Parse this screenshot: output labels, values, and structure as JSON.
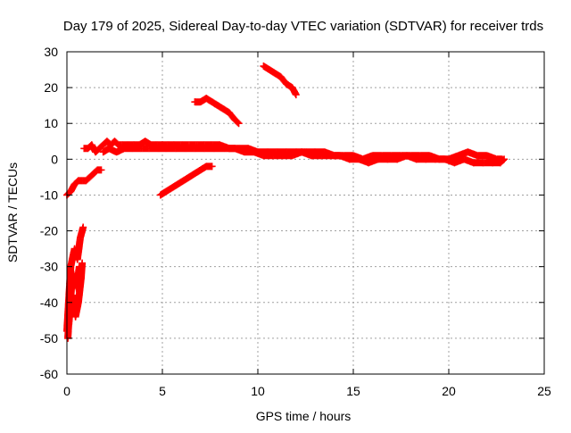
{
  "chart_data": {
    "type": "scatter",
    "title": "Day 179 of 2025, Sidereal Day-to-day VTEC variation (SDTVAR) for receiver trds",
    "xlabel": "GPS time / hours",
    "ylabel": "SDTVAR / TECUs",
    "xlim": [
      0,
      25
    ],
    "ylim": [
      -60,
      30
    ],
    "xticks": [
      0,
      5,
      10,
      15,
      20,
      25
    ],
    "yticks": [
      -60,
      -50,
      -40,
      -30,
      -20,
      -10,
      0,
      10,
      20,
      30
    ],
    "grid": true,
    "marker": "plus",
    "color": "#ff0000",
    "series": [
      {
        "name": "arc-low-spikes",
        "segments": [
          [
            [
              0.0,
              -48
            ],
            [
              0.2,
              -30
            ],
            [
              0.4,
              -25
            ],
            [
              0.55,
              -28
            ],
            [
              0.7,
              -22
            ],
            [
              0.85,
              -19
            ]
          ],
          [
            [
              0.05,
              -50
            ],
            [
              0.15,
              -40
            ],
            [
              0.3,
              -38
            ],
            [
              0.45,
              -44
            ],
            [
              0.6,
              -40
            ],
            [
              0.75,
              -33
            ],
            [
              0.8,
              -29
            ]
          ],
          [
            [
              0.1,
              -46
            ],
            [
              0.25,
              -35
            ],
            [
              0.35,
              -32
            ],
            [
              0.5,
              -36
            ],
            [
              0.65,
              -30
            ]
          ]
        ]
      },
      {
        "name": "arc-lower-left",
        "segments": [
          [
            [
              0.0,
              -10
            ],
            [
              0.2,
              -9
            ],
            [
              0.4,
              -7
            ],
            [
              0.6,
              -6
            ],
            [
              0.8,
              -6
            ],
            [
              1.0,
              -6
            ],
            [
              1.2,
              -5
            ],
            [
              1.4,
              -4
            ],
            [
              1.6,
              -3
            ],
            [
              1.8,
              -3
            ]
          ]
        ]
      },
      {
        "name": "arc-main",
        "segments": [
          [
            [
              0.9,
              3
            ],
            [
              1.1,
              3
            ],
            [
              1.3,
              4
            ],
            [
              1.5,
              2
            ],
            [
              1.7,
              3
            ],
            [
              1.9,
              4
            ],
            [
              2.1,
              5
            ],
            [
              2.3,
              4
            ],
            [
              2.5,
              5
            ],
            [
              2.7,
              4
            ],
            [
              2.9,
              4
            ],
            [
              3.2,
              4
            ],
            [
              3.5,
              4
            ],
            [
              3.8,
              4
            ],
            [
              4.1,
              5
            ],
            [
              4.4,
              4
            ],
            [
              4.7,
              4
            ],
            [
              5.0,
              4
            ],
            [
              5.3,
              4
            ],
            [
              5.6,
              4
            ],
            [
              6.0,
              4
            ],
            [
              6.4,
              4
            ],
            [
              6.8,
              4
            ],
            [
              7.2,
              4
            ],
            [
              7.6,
              4
            ],
            [
              8.0,
              4
            ],
            [
              8.5,
              3
            ],
            [
              9.0,
              3
            ],
            [
              9.5,
              3
            ],
            [
              10.0,
              2
            ],
            [
              10.5,
              2
            ],
            [
              11.0,
              2
            ],
            [
              11.5,
              2
            ],
            [
              12.0,
              2
            ],
            [
              12.5,
              2
            ],
            [
              13.0,
              2
            ],
            [
              13.5,
              2
            ],
            [
              14.0,
              1
            ],
            [
              14.5,
              1
            ],
            [
              15.0,
              1
            ],
            [
              15.5,
              0
            ],
            [
              16.0,
              1
            ],
            [
              16.5,
              1
            ],
            [
              17.0,
              1
            ],
            [
              17.5,
              1
            ],
            [
              18.0,
              1
            ],
            [
              18.5,
              1
            ],
            [
              19.0,
              1
            ],
            [
              19.5,
              0
            ],
            [
              20.0,
              0
            ],
            [
              20.5,
              1
            ],
            [
              21.0,
              2
            ],
            [
              21.5,
              1
            ],
            [
              22.0,
              1
            ],
            [
              22.5,
              0
            ],
            [
              22.8,
              0
            ]
          ],
          [
            [
              1.9,
              2
            ],
            [
              2.2,
              3
            ],
            [
              2.6,
              2
            ],
            [
              3.0,
              3
            ],
            [
              3.4,
              3
            ],
            [
              3.9,
              3
            ],
            [
              4.3,
              3
            ],
            [
              4.8,
              3
            ],
            [
              5.2,
              3
            ],
            [
              5.7,
              3
            ],
            [
              6.2,
              3
            ],
            [
              6.7,
              3
            ],
            [
              7.2,
              3
            ],
            [
              7.7,
              3
            ],
            [
              8.3,
              3
            ],
            [
              8.8,
              3
            ],
            [
              9.3,
              2
            ],
            [
              9.8,
              2
            ],
            [
              10.3,
              1
            ],
            [
              10.8,
              1
            ],
            [
              11.3,
              1
            ],
            [
              11.8,
              1
            ],
            [
              12.3,
              2
            ],
            [
              12.8,
              1
            ],
            [
              13.3,
              1
            ],
            [
              13.8,
              1
            ],
            [
              14.3,
              1
            ],
            [
              14.8,
              0
            ],
            [
              15.3,
              0
            ],
            [
              15.8,
              -1
            ],
            [
              16.3,
              0
            ],
            [
              16.8,
              0
            ],
            [
              17.3,
              0
            ],
            [
              17.8,
              1
            ],
            [
              18.3,
              0
            ],
            [
              18.8,
              0
            ],
            [
              19.3,
              0
            ],
            [
              19.8,
              0
            ],
            [
              20.3,
              -1
            ],
            [
              20.8,
              0
            ],
            [
              21.3,
              -1
            ],
            [
              21.8,
              -1
            ],
            [
              22.3,
              -1
            ],
            [
              22.7,
              -1
            ],
            [
              22.9,
              0
            ]
          ]
        ]
      },
      {
        "name": "arc-rising-5h",
        "segments": [
          [
            [
              4.9,
              -10
            ],
            [
              5.2,
              -9
            ],
            [
              5.5,
              -8
            ],
            [
              5.8,
              -7
            ],
            [
              6.1,
              -6
            ],
            [
              6.4,
              -5
            ],
            [
              6.7,
              -4
            ],
            [
              7.0,
              -3
            ],
            [
              7.3,
              -2
            ],
            [
              7.6,
              -2
            ]
          ]
        ]
      },
      {
        "name": "arc-7h",
        "segments": [
          [
            [
              6.7,
              16
            ],
            [
              7.0,
              16
            ],
            [
              7.3,
              17
            ],
            [
              7.6,
              16
            ],
            [
              7.9,
              15
            ],
            [
              8.2,
              14
            ],
            [
              8.5,
              13
            ],
            [
              8.8,
              11
            ],
            [
              9.0,
              10
            ]
          ]
        ]
      },
      {
        "name": "arc-10h",
        "segments": [
          [
            [
              10.3,
              26
            ],
            [
              10.6,
              25
            ],
            [
              10.9,
              24
            ],
            [
              11.2,
              23
            ],
            [
              11.5,
              21
            ],
            [
              11.8,
              20
            ],
            [
              12.0,
              18
            ]
          ]
        ]
      }
    ]
  }
}
